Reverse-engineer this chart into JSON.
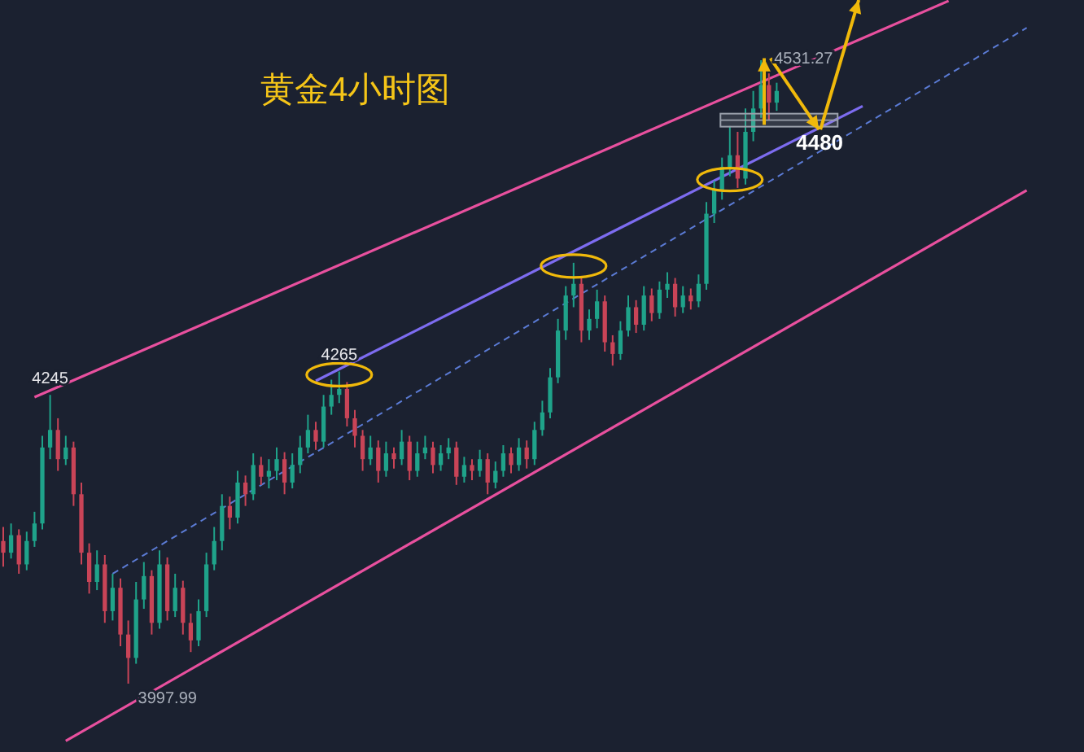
{
  "chart_data": {
    "type": "candlestick",
    "title": "黄金4小时图",
    "categories": [
      null,
      null,
      null,
      null,
      null,
      null,
      null,
      null,
      null,
      null,
      null,
      null,
      null,
      null,
      null,
      null,
      null,
      null,
      null,
      null,
      null,
      null,
      null,
      null,
      null,
      null,
      null,
      null,
      null,
      null,
      null,
      null,
      null,
      null,
      null,
      null,
      null,
      null,
      null,
      null,
      null,
      null,
      null,
      null,
      null,
      null,
      null,
      null,
      null,
      null,
      null,
      null,
      null,
      null,
      null,
      null,
      null,
      null,
      null,
      null,
      null,
      null,
      null,
      null,
      null,
      null,
      null,
      null,
      null,
      null,
      null,
      null,
      null,
      null,
      null,
      null,
      null,
      null,
      null,
      null,
      null,
      null,
      null,
      null,
      null,
      null,
      null,
      null,
      null,
      null,
      null,
      null,
      null,
      null,
      null,
      null,
      null,
      null,
      null,
      null,
      null,
      null,
      null,
      null,
      null,
      null,
      null,
      null,
      null,
      null,
      null,
      null,
      null,
      null,
      null,
      null,
      null,
      null,
      null,
      null,
      null,
      null,
      null,
      null,
      null,
      null,
      null,
      null,
      null,
      null,
      null,
      null
    ],
    "ref_lines": [
      {
        "axis": "y",
        "value": 4480,
        "label": "4480",
        "color": "#9aa0ab"
      }
    ],
    "ohlc": [
      [
        4120,
        4132,
        4098,
        4110
      ],
      [
        4110,
        4135,
        4105,
        4125
      ],
      [
        4125,
        4130,
        4092,
        4100
      ],
      [
        4100,
        4128,
        4095,
        4120
      ],
      [
        4120,
        4145,
        4115,
        4135
      ],
      [
        4135,
        4210,
        4130,
        4200
      ],
      [
        4200,
        4245,
        4190,
        4215
      ],
      [
        4215,
        4225,
        4180,
        4190
      ],
      [
        4190,
        4210,
        4185,
        4200
      ],
      [
        4200,
        4205,
        4150,
        4160
      ],
      [
        4160,
        4170,
        4100,
        4110
      ],
      [
        4110,
        4118,
        4075,
        4085
      ],
      [
        4085,
        4112,
        4078,
        4100
      ],
      [
        4100,
        4108,
        4050,
        4060
      ],
      [
        4060,
        4092,
        4052,
        4080
      ],
      [
        4080,
        4088,
        4030,
        4040
      ],
      [
        4040,
        4052,
        3997.99,
        4020
      ],
      [
        4020,
        4085,
        4015,
        4070
      ],
      [
        4070,
        4102,
        4062,
        4090
      ],
      [
        4090,
        4095,
        4040,
        4050
      ],
      [
        4050,
        4112,
        4045,
        4100
      ],
      [
        4100,
        4106,
        4052,
        4060
      ],
      [
        4060,
        4092,
        4055,
        4080
      ],
      [
        4080,
        4086,
        4040,
        4050
      ],
      [
        4050,
        4058,
        4025,
        4035
      ],
      [
        4035,
        4070,
        4030,
        4060
      ],
      [
        4060,
        4110,
        4055,
        4100
      ],
      [
        4100,
        4132,
        4095,
        4120
      ],
      [
        4120,
        4160,
        4112,
        4150
      ],
      [
        4150,
        4158,
        4130,
        4140
      ],
      [
        4140,
        4180,
        4135,
        4170
      ],
      [
        4170,
        4176,
        4150,
        4160
      ],
      [
        4160,
        4195,
        4155,
        4185
      ],
      [
        4185,
        4192,
        4168,
        4175
      ],
      [
        4175,
        4190,
        4165,
        4180
      ],
      [
        4180,
        4200,
        4172,
        4190
      ],
      [
        4190,
        4196,
        4160,
        4170
      ],
      [
        4170,
        4195,
        4165,
        4185
      ],
      [
        4185,
        4210,
        4178,
        4200
      ],
      [
        4200,
        4228,
        4195,
        4215
      ],
      [
        4215,
        4222,
        4198,
        4205
      ],
      [
        4205,
        4245,
        4200,
        4235
      ],
      [
        4235,
        4258,
        4228,
        4245
      ],
      [
        4245,
        4265,
        4238,
        4250
      ],
      [
        4250,
        4256,
        4218,
        4225
      ],
      [
        4225,
        4232,
        4200,
        4210
      ],
      [
        4210,
        4215,
        4180,
        4190
      ],
      [
        4190,
        4210,
        4185,
        4200
      ],
      [
        4200,
        4206,
        4170,
        4180
      ],
      [
        4180,
        4205,
        4175,
        4195
      ],
      [
        4195,
        4200,
        4182,
        4190
      ],
      [
        4190,
        4215,
        4185,
        4205
      ],
      [
        4205,
        4210,
        4172,
        4180
      ],
      [
        4180,
        4205,
        4175,
        4195
      ],
      [
        4195,
        4210,
        4190,
        4200
      ],
      [
        4200,
        4205,
        4178,
        4185
      ],
      [
        4185,
        4202,
        4180,
        4195
      ],
      [
        4195,
        4208,
        4190,
        4200
      ],
      [
        4200,
        4205,
        4168,
        4175
      ],
      [
        4175,
        4192,
        4170,
        4185
      ],
      [
        4185,
        4190,
        4172,
        4180
      ],
      [
        4180,
        4198,
        4175,
        4190
      ],
      [
        4190,
        4195,
        4160,
        4170
      ],
      [
        4170,
        4188,
        4165,
        4180
      ],
      [
        4180,
        4202,
        4175,
        4195
      ],
      [
        4195,
        4200,
        4178,
        4185
      ],
      [
        4185,
        4208,
        4180,
        4200
      ],
      [
        4200,
        4206,
        4182,
        4190
      ],
      [
        4190,
        4222,
        4185,
        4215
      ],
      [
        4215,
        4240,
        4210,
        4230
      ],
      [
        4230,
        4268,
        4225,
        4260
      ],
      [
        4260,
        4310,
        4255,
        4300
      ],
      [
        4300,
        4338,
        4292,
        4330
      ],
      [
        4330,
        4358,
        4320,
        4340
      ],
      [
        4340,
        4345,
        4290,
        4300
      ],
      [
        4300,
        4318,
        4292,
        4310
      ],
      [
        4310,
        4335,
        4302,
        4325
      ],
      [
        4325,
        4330,
        4282,
        4290
      ],
      [
        4290,
        4296,
        4270,
        4280
      ],
      [
        4280,
        4308,
        4275,
        4300
      ],
      [
        4300,
        4330,
        4295,
        4320
      ],
      [
        4320,
        4326,
        4298,
        4305
      ],
      [
        4305,
        4338,
        4300,
        4330
      ],
      [
        4330,
        4336,
        4308,
        4315
      ],
      [
        4315,
        4342,
        4310,
        4335
      ],
      [
        4335,
        4350,
        4328,
        4340
      ],
      [
        4340,
        4345,
        4312,
        4320
      ],
      [
        4320,
        4338,
        4315,
        4330
      ],
      [
        4330,
        4336,
        4318,
        4325
      ],
      [
        4325,
        4348,
        4320,
        4340
      ],
      [
        4340,
        4410,
        4335,
        4400
      ],
      [
        4400,
        4428,
        4392,
        4420
      ],
      [
        4420,
        4448,
        4412,
        4440
      ],
      [
        4440,
        4475,
        4432,
        4450
      ],
      [
        4450,
        4470,
        4422,
        4430
      ],
      [
        4430,
        4490,
        4425,
        4470
      ],
      [
        4470,
        4505,
        4462,
        4490
      ],
      [
        4490,
        4531.27,
        4482,
        4510
      ],
      [
        4510,
        4520,
        4480,
        4495
      ],
      [
        4495,
        4512,
        4488,
        4505
      ],
      null,
      null,
      null,
      null,
      null,
      null,
      null,
      null,
      null,
      null,
      null,
      null,
      null,
      null,
      null,
      null,
      null,
      null,
      null,
      null,
      null,
      null,
      null,
      null,
      null,
      null,
      null,
      null,
      null,
      null,
      null,
      null
    ],
    "series": [
      {
        "type": "line",
        "color": "#e8509e",
        "values": [
          null,
          null,
          null,
          null,
          4243,
          null,
          null,
          null,
          null,
          null,
          null,
          null,
          null,
          null,
          null,
          null,
          null,
          null,
          null,
          null,
          null,
          null,
          null,
          null,
          null,
          null,
          null,
          null,
          null,
          null,
          null,
          null,
          null,
          null,
          null,
          null,
          null,
          null,
          null,
          null,
          null,
          null,
          null,
          null,
          null,
          null,
          null,
          null,
          null,
          null,
          null,
          null,
          null,
          null,
          null,
          null,
          null,
          null,
          null,
          null,
          null,
          null,
          null,
          null,
          null,
          null,
          null,
          null,
          null,
          null,
          null,
          null,
          null,
          null,
          null,
          null,
          null,
          null,
          null,
          null,
          null,
          null,
          null,
          null,
          null,
          null,
          null,
          null,
          null,
          null,
          null,
          null,
          null,
          null,
          null,
          null,
          null,
          null,
          null,
          null,
          null,
          null,
          null,
          null,
          null,
          null,
          null,
          null,
          null,
          null,
          null,
          null,
          null,
          null,
          null,
          null,
          null,
          null,
          null,
          null,
          null,
          4582,
          null,
          null,
          null,
          null,
          null,
          null,
          null,
          null,
          null,
          null
        ]
      },
      {
        "type": "line",
        "color": "#e8509e",
        "values": [
          null,
          null,
          null,
          null,
          null,
          null,
          null,
          null,
          3949,
          null,
          null,
          null,
          null,
          null,
          null,
          null,
          null,
          null,
          null,
          null,
          null,
          null,
          null,
          null,
          null,
          null,
          null,
          null,
          null,
          null,
          null,
          null,
          null,
          null,
          null,
          null,
          null,
          null,
          null,
          null,
          null,
          null,
          null,
          null,
          null,
          null,
          null,
          null,
          null,
          null,
          null,
          null,
          null,
          null,
          null,
          null,
          null,
          null,
          null,
          null,
          null,
          null,
          null,
          null,
          null,
          null,
          null,
          null,
          null,
          null,
          null,
          null,
          null,
          null,
          null,
          null,
          null,
          null,
          null,
          null,
          null,
          null,
          null,
          null,
          null,
          null,
          null,
          null,
          null,
          null,
          null,
          null,
          null,
          null,
          null,
          null,
          null,
          null,
          null,
          null,
          null,
          null,
          null,
          null,
          null,
          null,
          null,
          null,
          null,
          null,
          null,
          null,
          null,
          null,
          null,
          null,
          null,
          null,
          null,
          null,
          null,
          null,
          null,
          null,
          null,
          null,
          null,
          null,
          null,
          null,
          null,
          4420
        ]
      },
      {
        "type": "line",
        "color": "#7d6cf0",
        "values": [
          null,
          null,
          null,
          null,
          null,
          null,
          null,
          null,
          null,
          null,
          null,
          null,
          null,
          null,
          null,
          null,
          null,
          null,
          null,
          null,
          null,
          null,
          null,
          null,
          null,
          null,
          null,
          null,
          null,
          null,
          null,
          null,
          null,
          null,
          null,
          null,
          null,
          null,
          null,
          null,
          4257,
          null,
          null,
          null,
          null,
          null,
          null,
          null,
          null,
          null,
          null,
          null,
          null,
          null,
          null,
          null,
          null,
          null,
          null,
          null,
          null,
          null,
          null,
          null,
          null,
          null,
          null,
          null,
          null,
          null,
          null,
          null,
          null,
          null,
          null,
          null,
          null,
          null,
          null,
          null,
          null,
          null,
          null,
          null,
          null,
          null,
          null,
          null,
          null,
          null,
          null,
          null,
          null,
          null,
          null,
          null,
          null,
          null,
          null,
          null,
          null,
          null,
          null,
          null,
          null,
          null,
          null,
          null,
          null,
          null,
          4492,
          null,
          null,
          null,
          null,
          null,
          null,
          null,
          null,
          null,
          null,
          null,
          null,
          null,
          null,
          null,
          null,
          null,
          null,
          null,
          null,
          null
        ]
      },
      {
        "type": "line",
        "color": "#5b7bd5",
        "line_style": "dashed",
        "values": [
          null,
          null,
          null,
          null,
          null,
          null,
          null,
          null,
          null,
          null,
          null,
          null,
          null,
          null,
          4092,
          null,
          null,
          null,
          null,
          null,
          null,
          null,
          null,
          null,
          null,
          null,
          null,
          null,
          null,
          null,
          null,
          null,
          null,
          null,
          null,
          null,
          null,
          null,
          null,
          null,
          null,
          null,
          null,
          null,
          null,
          null,
          null,
          null,
          null,
          null,
          null,
          null,
          null,
          null,
          null,
          null,
          null,
          null,
          null,
          null,
          null,
          null,
          null,
          null,
          null,
          null,
          null,
          null,
          null,
          null,
          null,
          null,
          null,
          null,
          null,
          null,
          null,
          null,
          null,
          null,
          null,
          null,
          null,
          null,
          null,
          null,
          null,
          null,
          null,
          null,
          null,
          null,
          null,
          null,
          null,
          null,
          null,
          null,
          null,
          null,
          null,
          null,
          null,
          null,
          null,
          null,
          null,
          null,
          null,
          null,
          null,
          null,
          null,
          null,
          null,
          null,
          null,
          null,
          null,
          null,
          null,
          null,
          null,
          null,
          null,
          null,
          null,
          null,
          null,
          null,
          null,
          4559
        ]
      }
    ],
    "annotations": [
      {
        "text": "4245",
        "y": 4245
      },
      {
        "text": "4265",
        "y": 4265
      },
      {
        "text": "3997.99",
        "y": 3997.99
      },
      {
        "text": "4531.27",
        "y": 4531.27
      }
    ]
  }
}
